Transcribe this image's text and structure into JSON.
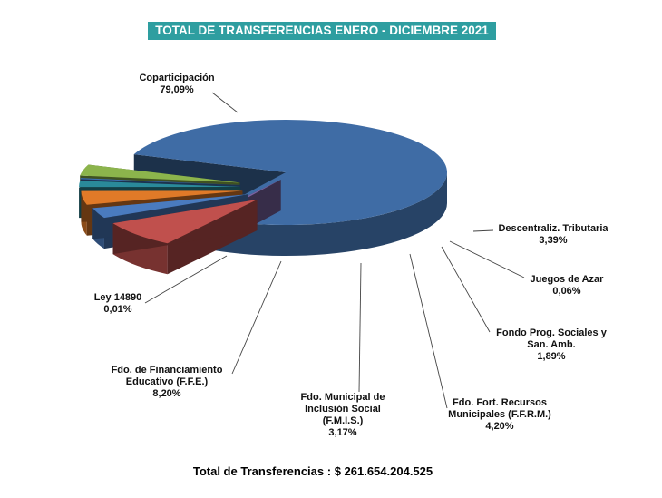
{
  "chart_data": {
    "type": "pie",
    "title": "TOTAL DE TRANSFERENCIAS ENERO -  DICIEMBRE 2021",
    "slices": [
      {
        "name": "Coparticipación",
        "label": "79,09%",
        "value": 79.09,
        "color": "#3f6ca5"
      },
      {
        "name": "Ley 14890",
        "label": "0,01%",
        "value": 0.01,
        "color": "#7b63a3"
      },
      {
        "name": "Fdo. de Financiamiento Educativo (F.F.E.)",
        "label": "8,20%",
        "value": 8.2,
        "color": "#c0504d"
      },
      {
        "name": "Fdo.  Municipal de Inclusión Social (F.M.I.S.)",
        "label": "3,17%",
        "value": 3.17,
        "color": "#4a7bbf"
      },
      {
        "name": "Fdo. Fort. Recursos Municipales (F.F.R.M.)",
        "label": "4,20%",
        "value": 4.2,
        "color": "#e07a28"
      },
      {
        "name": "Fondo Prog. Sociales y San. Amb.",
        "label": "1,89%",
        "value": 1.89,
        "color": "#2a8a9a"
      },
      {
        "name": "Juegos de Azar",
        "label": "0,06%",
        "value": 0.06,
        "color": "#3e6fb0"
      },
      {
        "name": "Descentraliz. Tributaria",
        "label": "3,39%",
        "value": 3.39,
        "color": "#8cb44c"
      }
    ],
    "footer_label": "Total de Transferencias :",
    "footer_value": "$ 261.654.204.525"
  }
}
